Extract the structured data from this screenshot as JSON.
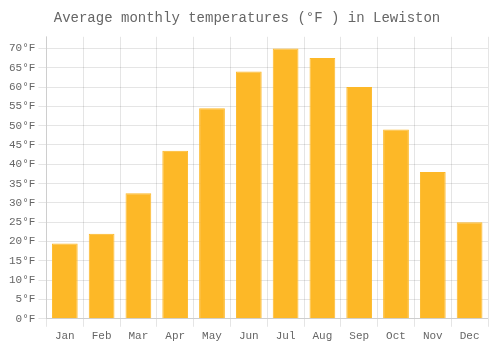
{
  "chart_data": {
    "type": "bar",
    "title": "Average monthly temperatures (°F ) in Lewiston",
    "categories": [
      "Jan",
      "Feb",
      "Mar",
      "Apr",
      "May",
      "Jun",
      "Jul",
      "Aug",
      "Sep",
      "Oct",
      "Nov",
      "Dec"
    ],
    "values": [
      19.5,
      22,
      32.5,
      43.5,
      54.5,
      64,
      70,
      67.5,
      60,
      49,
      38,
      25
    ],
    "color": "#FDB827",
    "ylim": [
      0,
      73
    ],
    "yticks": [
      {
        "value": 0,
        "label": "0°F"
      },
      {
        "value": 5,
        "label": "5°F"
      },
      {
        "value": 10,
        "label": "10°F"
      },
      {
        "value": 15,
        "label": "15°F"
      },
      {
        "value": 20,
        "label": "20°F"
      },
      {
        "value": 25,
        "label": "25°F"
      },
      {
        "value": 30,
        "label": "30°F"
      },
      {
        "value": 35,
        "label": "35°F"
      },
      {
        "value": 40,
        "label": "40°F"
      },
      {
        "value": 45,
        "label": "45°F"
      },
      {
        "value": 50,
        "label": "50°F"
      },
      {
        "value": 55,
        "label": "55°F"
      },
      {
        "value": 60,
        "label": "60°F"
      },
      {
        "value": 65,
        "label": "65°F"
      },
      {
        "value": 70,
        "label": "70°F"
      }
    ],
    "grid": true
  }
}
